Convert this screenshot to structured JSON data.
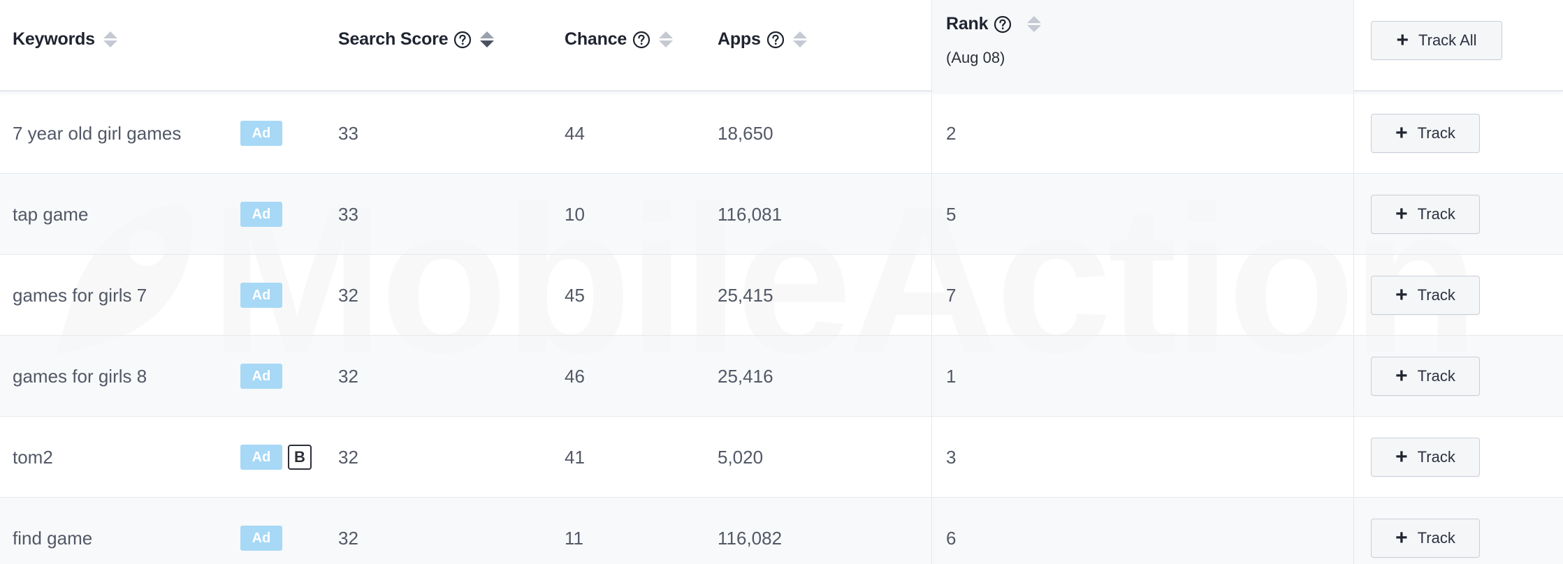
{
  "header": {
    "keywords": "Keywords",
    "search_score": "Search Score",
    "chance": "Chance",
    "apps": "Apps",
    "rank": "Rank",
    "rank_date": "(Aug 08)",
    "track_all": "Track All"
  },
  "watermark": "MobileAction",
  "rows": [
    {
      "keyword": "7 year old girl games",
      "ad": "Ad",
      "b": "",
      "search_score": "33",
      "chance": "44",
      "apps": "18,650",
      "rank": "2",
      "track": "Track"
    },
    {
      "keyword": "tap game",
      "ad": "Ad",
      "b": "",
      "search_score": "33",
      "chance": "10",
      "apps": "116,081",
      "rank": "5",
      "track": "Track"
    },
    {
      "keyword": "games for girls 7",
      "ad": "Ad",
      "b": "",
      "search_score": "32",
      "chance": "45",
      "apps": "25,415",
      "rank": "7",
      "track": "Track"
    },
    {
      "keyword": "games for girls 8",
      "ad": "Ad",
      "b": "",
      "search_score": "32",
      "chance": "46",
      "apps": "25,416",
      "rank": "1",
      "track": "Track"
    },
    {
      "keyword": "tom2",
      "ad": "Ad",
      "b": "B",
      "search_score": "32",
      "chance": "41",
      "apps": "5,020",
      "rank": "3",
      "track": "Track"
    },
    {
      "keyword": "find game",
      "ad": "Ad",
      "b": "",
      "search_score": "32",
      "chance": "11",
      "apps": "116,082",
      "rank": "6",
      "track": "Track"
    }
  ]
}
